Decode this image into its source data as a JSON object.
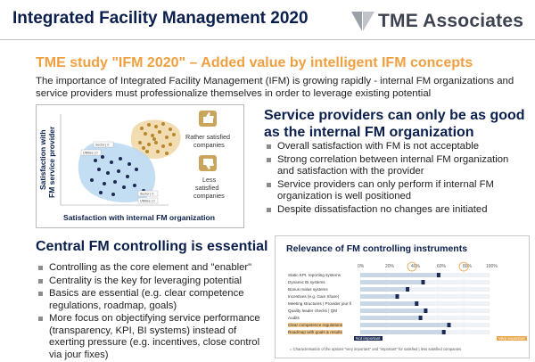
{
  "header": {
    "title": "Integrated Facility Management 2020",
    "logo_text": "TME Associates"
  },
  "subtitle": "TME study \"IFM 2020\" – Added value by intelligent IFM concepts",
  "intro": "The importance of Integrated Facility Management (IFM) is growing rapidly - internal FM organizations and service providers must professionalize themselves in order to leverage existing potential",
  "chart1": {
    "ylabel_line1": "Satisfaction with",
    "ylabel_line2": "FM service provider",
    "xlabel": "Satisfaction with internal FM organization",
    "legend_satisfied": [
      "Rather satisfied",
      "companies"
    ],
    "legend_less": [
      "Less",
      "satisfied",
      "companies"
    ],
    "tag_tl": "Sector | 0",
    "tag_tl2": "Utilities | 0",
    "tag_br": "Sector | 0",
    "tag_br2": "Utilities | 0",
    "colors": {
      "satisfied": "#f0d9a8",
      "less": "#bcd9f2",
      "dot_sat": "#b8862e",
      "dot_less": "#1b2a52"
    }
  },
  "section1": {
    "heading": "Service providers can only be as good as the internal FM organization",
    "bullets": [
      "Overall satisfaction with FM is not acceptable",
      "Strong correlation between internal FM organization and satisfaction with the provider",
      "Service providers can only perform if internal FM organization is well positioned",
      "Despite dissatisfaction no changes are initiated"
    ]
  },
  "section2": {
    "heading": "Central FM controlling is essential",
    "bullets": [
      "Controlling as the core element and \"enabler\"",
      "Centrality is the key for leveraging potential",
      "Basics are essential (e.g. clear competence regulations, roadmap, goals)",
      "More focus on objectifying service performance (transparency, KPI, BI systems) instead of exerting pressure (e.g. incentives, close control via jour fixes)"
    ]
  },
  "panel": {
    "title": "Relevance of FM controlling instruments",
    "pcts": [
      "0%",
      "20%",
      "40%",
      "60%",
      "80%",
      "100%"
    ],
    "rows": [
      {
        "label": "Static KPI, reporting systems",
        "v": 0.62
      },
      {
        "label": "Dynamic BI systems",
        "v": 0.5
      },
      {
        "label": "Bonus malus systems",
        "v": 0.38
      },
      {
        "label": "Incentives (e.g. Gain Share)",
        "v": 0.3
      },
      {
        "label": "Meeting structures | Provider jour fi",
        "v": 0.45
      },
      {
        "label": "Quality leader checks | QM",
        "v": 0.52
      },
      {
        "label": "Audits",
        "v": 0.48
      },
      {
        "label": "Clear competence regulations",
        "v": 0.7
      },
      {
        "label": "Roadmap with goals & results",
        "v": 0.66
      }
    ],
    "low_label": "Not important",
    "high_label": "Very important",
    "legend": "= Characterisation of the options \"very important\" and \"important\" for satisfied | less satisfied companies"
  }
}
